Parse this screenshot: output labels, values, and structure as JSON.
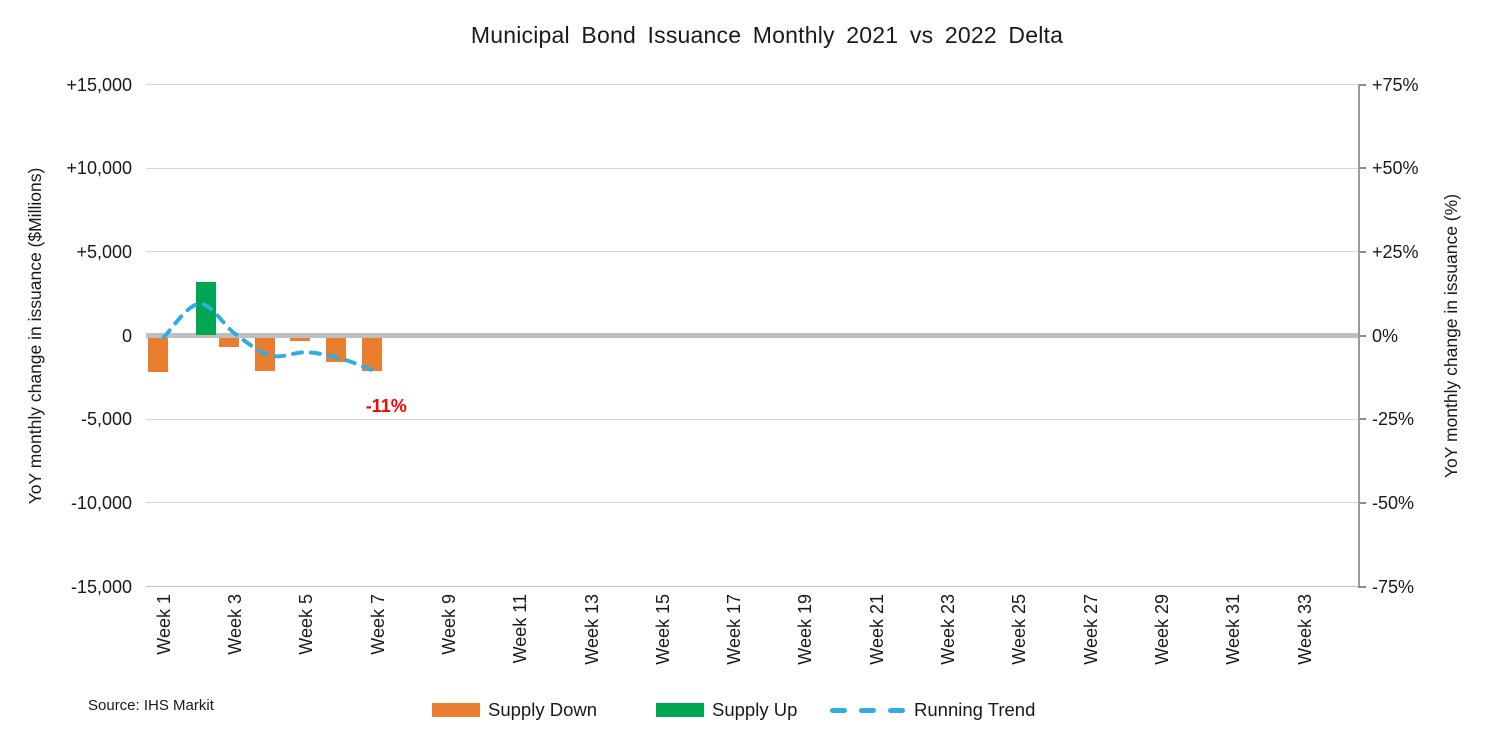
{
  "title": "Municipal Bond Issuance Monthly  2021 vs 2022 Delta",
  "source": "Source: IHS Markit",
  "legend": [
    {
      "label": "Supply Down",
      "swatch": "bar",
      "color": "#E87E2E"
    },
    {
      "label": "Supply Up",
      "swatch": "bar",
      "color": "#00A651"
    },
    {
      "label": "Running Trend",
      "swatch": "dash",
      "color": "#33ACE2"
    }
  ],
  "chart_data": {
    "type": "combo_bar_line",
    "title": "Municipal Bond Issuance Monthly  2021 vs 2022 Delta",
    "x_axis": {
      "categories_weeks": 34,
      "tick_weeks": [
        1,
        3,
        5,
        7,
        9,
        11,
        13,
        15,
        17,
        19,
        21,
        23,
        25,
        27,
        29,
        31,
        33
      ],
      "tick_labels": [
        "Week 1",
        "Week 3",
        "Week 5",
        "Week 7",
        "Week 9",
        "Week 11",
        "Week 13",
        "Week 15",
        "Week 17",
        "Week 19",
        "Week 21",
        "Week 23",
        "Week 25",
        "Week 27",
        "Week 29",
        "Week 31",
        "Week 33"
      ]
    },
    "left_axis": {
      "label": "YoY monthly change in issuance ($Millions)",
      "range": [
        -15000,
        15000
      ],
      "tick_values": [
        15000,
        10000,
        5000,
        0,
        -5000,
        -10000,
        -15000
      ],
      "tick_labels": [
        "+15,000",
        "+10,000",
        "+5,000",
        "0",
        "-5,000",
        "-10,000",
        "-15,000"
      ]
    },
    "right_axis": {
      "label": "YoY monthly change in issuance (%)",
      "range": [
        -75,
        75
      ],
      "tick_values": [
        75,
        50,
        25,
        0,
        -25,
        -50,
        -75
      ],
      "tick_labels": [
        "+75%",
        "+50%",
        "+25%",
        "0%",
        "-25%",
        "-50%",
        "-75%"
      ]
    },
    "series": [
      {
        "name": "Supply Down",
        "type": "bar",
        "axis": "left",
        "color": "#E87E2E",
        "data": [
          {
            "week": 1,
            "value": -2200
          },
          {
            "week": 3,
            "value": -700
          },
          {
            "week": 4,
            "value": -2100
          },
          {
            "week": 5,
            "value": -300
          },
          {
            "week": 6,
            "value": -1600
          },
          {
            "week": 7,
            "value": -2100
          }
        ]
      },
      {
        "name": "Supply Up",
        "type": "bar",
        "axis": "left",
        "color": "#00A651",
        "data": [
          {
            "week": 2,
            "value": 3200
          }
        ]
      },
      {
        "name": "Running Trend",
        "type": "line",
        "line_style": "dashed",
        "axis": "right",
        "color": "#33ACE2",
        "data": [
          {
            "week": 1,
            "pct": -0.5
          },
          {
            "week": 2,
            "pct": 9.5
          },
          {
            "week": 3,
            "pct": 0.5
          },
          {
            "week": 4,
            "pct": -6
          },
          {
            "week": 5,
            "pct": -5
          },
          {
            "week": 6,
            "pct": -7
          },
          {
            "week": 7,
            "pct": -11
          }
        ]
      }
    ],
    "annotations": [
      {
        "text": "-11%",
        "color": "#FF0000",
        "week": 7,
        "pct": -21
      }
    ],
    "gridlines": true,
    "zero_line": true,
    "legend_position": "bottom"
  }
}
